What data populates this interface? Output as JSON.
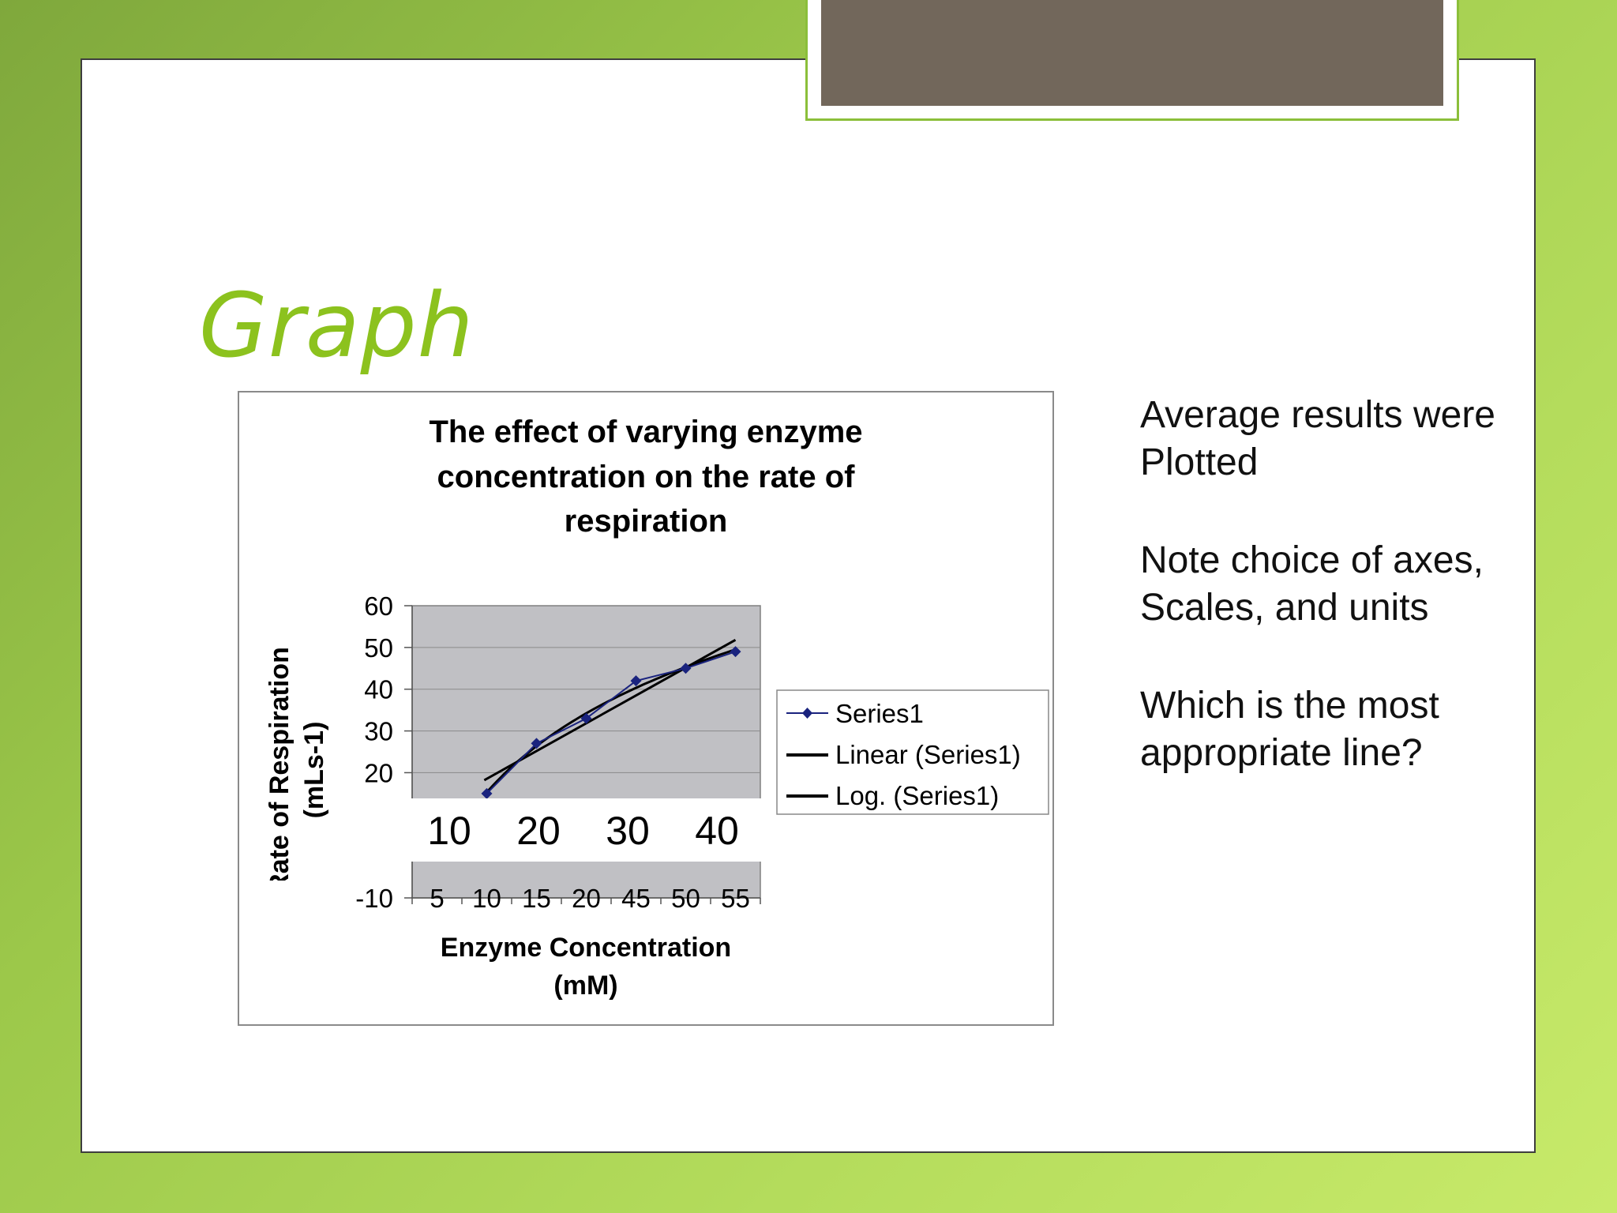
{
  "slide": {
    "title": "Graph",
    "notes": [
      {
        "line1": "Average results were",
        "line2": "Plotted"
      },
      {
        "line1": "Note choice of axes,",
        "line2": "Scales, and units"
      },
      {
        "line1": "Which is the most",
        "line2": "appropriate line?"
      }
    ]
  },
  "colors": {
    "accent": "#8cc21e",
    "tab_fill": "#72675b",
    "plot_bg": "#c0c0c4",
    "series": "#1a237e"
  },
  "chart_data": {
    "type": "line",
    "title_lines": [
      "The effect of varying enzyme",
      "concentration on the rate of",
      "respiration"
    ],
    "ylabel_lines": [
      "Rate of Respiration",
      "(mLs-1)"
    ],
    "xlabel_lines": [
      "Enzyme Concentration",
      "(mM)"
    ],
    "categories": [
      "5",
      "10",
      "15",
      "20",
      "45",
      "50",
      "55"
    ],
    "y_ticks": [
      60,
      50,
      40,
      30,
      20,
      -10
    ],
    "ylim": [
      -10,
      60
    ],
    "overlay_ticks": [
      "10",
      "20",
      "30",
      "40"
    ],
    "series": [
      {
        "name": "Series1",
        "marker": "diamond",
        "x": [
          "10",
          "15",
          "20",
          "45",
          "50",
          "55"
        ],
        "values": [
          15,
          27,
          33,
          42,
          45,
          49
        ]
      }
    ],
    "trendlines": [
      {
        "name": "Linear (Series1)",
        "kind": "linear"
      },
      {
        "name": "Log. (Series1)",
        "kind": "log"
      }
    ],
    "legend": "right"
  }
}
